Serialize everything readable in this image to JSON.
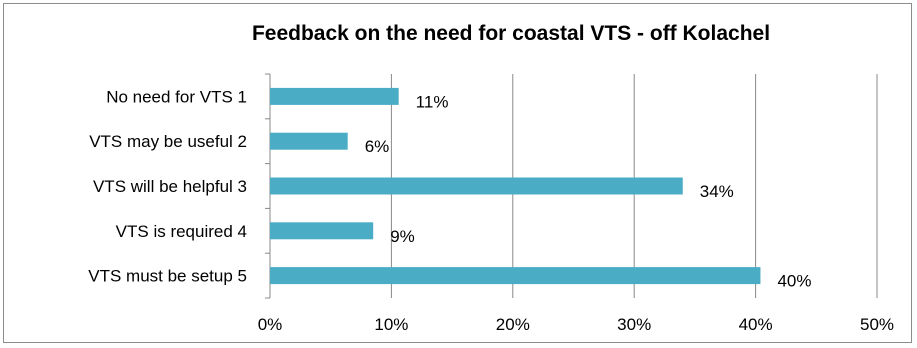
{
  "chart_data": {
    "type": "bar",
    "orientation": "horizontal",
    "title": "Feedback on the need for coastal VTS - off Kolachel",
    "categories": [
      "No need for VTS 1",
      "VTS may be useful 2",
      "VTS will be helpful 3",
      "VTS is required 4",
      "VTS must be setup 5"
    ],
    "values": [
      10.6,
      6.4,
      34.0,
      8.5,
      40.4
    ],
    "data_labels": [
      "11%",
      "6%",
      "34%",
      "9%",
      "40%"
    ],
    "xlim": [
      0,
      50
    ],
    "x_ticks": [
      0,
      10,
      20,
      30,
      40,
      50
    ],
    "x_tick_labels": [
      "0%",
      "10%",
      "20%",
      "30%",
      "40%",
      "50%"
    ],
    "xlabel": "",
    "ylabel": "",
    "grid": "vertical",
    "legend": "none",
    "colors": {
      "bar": "#4bacc6",
      "grid": "#888888",
      "axis": "#888888",
      "border": "#8c8c8c"
    }
  }
}
